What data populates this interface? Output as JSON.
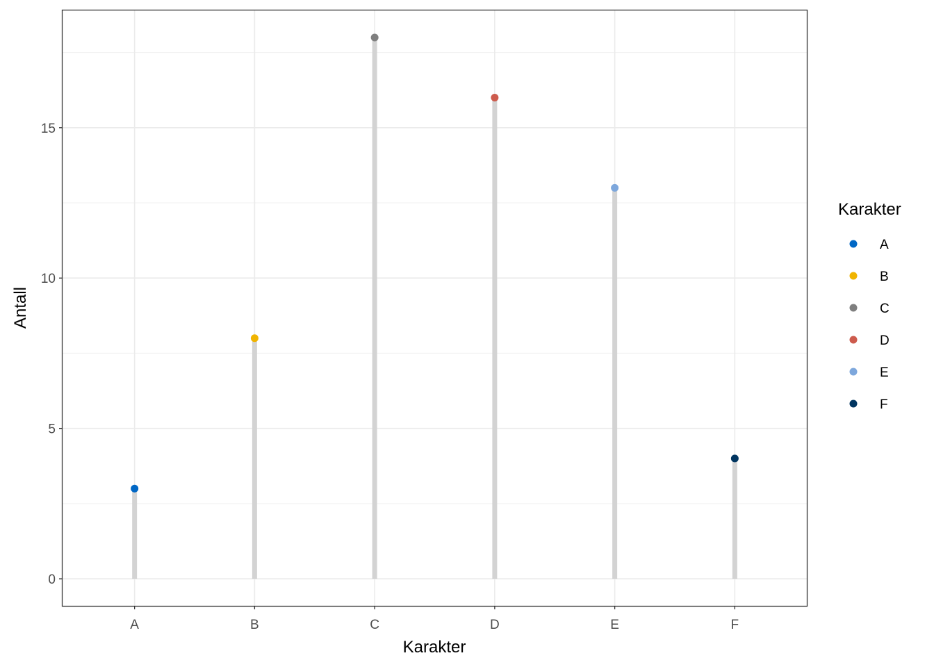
{
  "chart_data": {
    "type": "lollipop",
    "xlabel": "Karakter",
    "ylabel": "Antall",
    "categories": [
      "A",
      "B",
      "C",
      "D",
      "E",
      "F"
    ],
    "values": [
      3,
      8,
      18,
      16,
      13,
      4
    ],
    "colors": [
      "#0067C5",
      "#F0B400",
      "#7F7F7F",
      "#CD5B4D",
      "#7DA7DC",
      "#003560"
    ],
    "stem_color": "#D3D3D3",
    "ylim": [
      -0.9,
      18.9
    ],
    "yticks": [
      0,
      5,
      10,
      15
    ],
    "yticks_labels": [
      "0",
      "5",
      "10",
      "15"
    ],
    "grid": true,
    "legend": {
      "title": "Karakter",
      "placement": "right",
      "items": [
        "A",
        "B",
        "C",
        "D",
        "E",
        "F"
      ]
    }
  }
}
